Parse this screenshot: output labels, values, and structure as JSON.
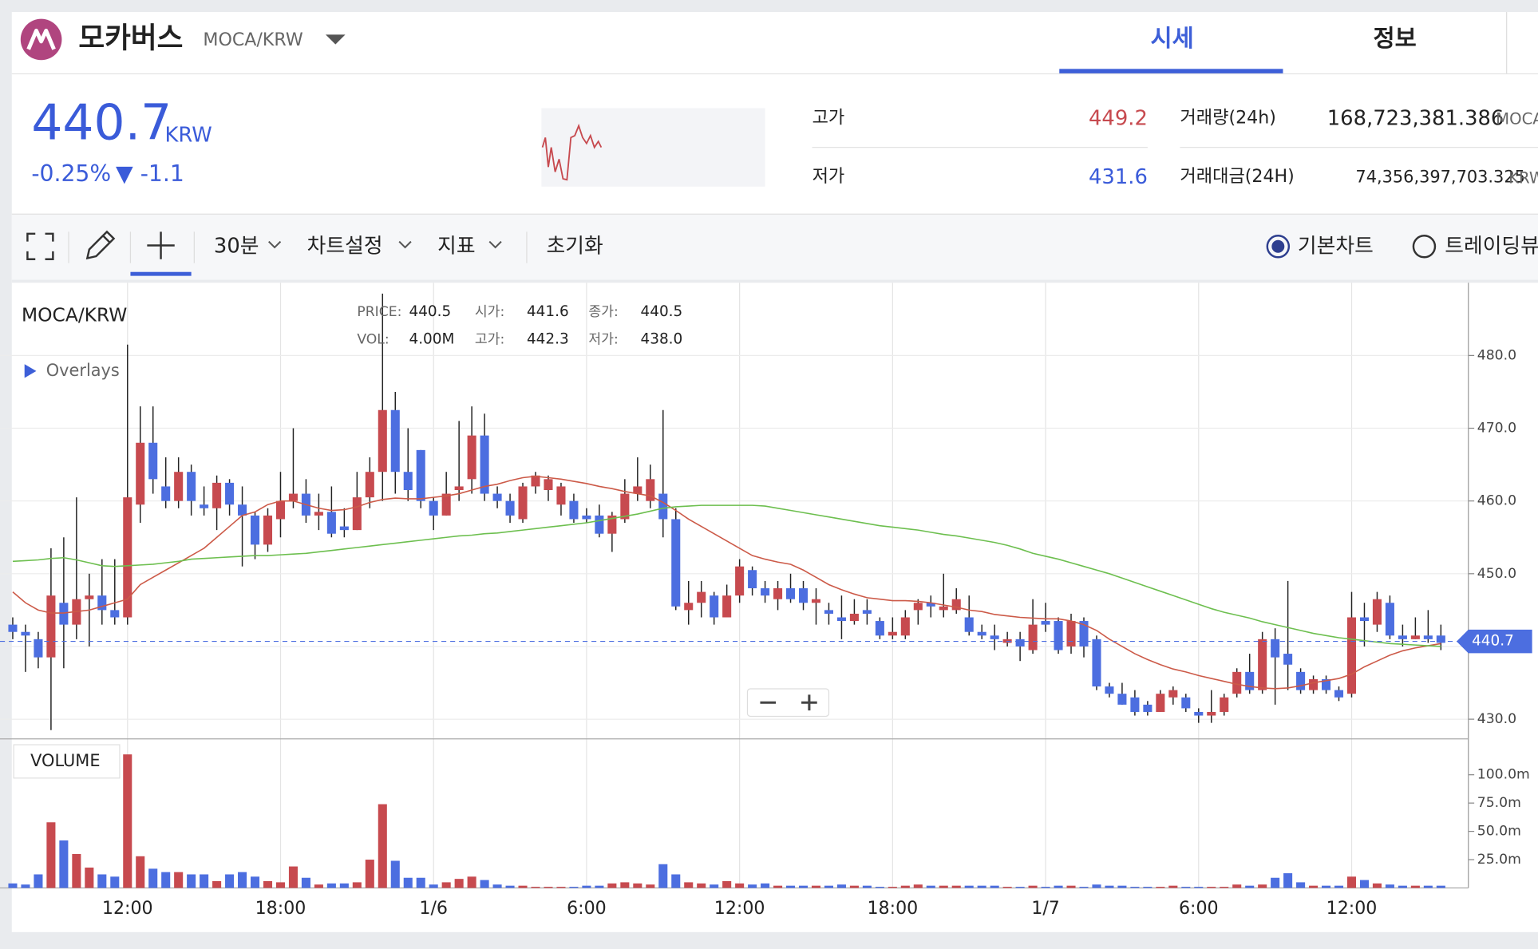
{
  "header": {
    "name": "모카버스",
    "pair": "MOCA/KRW",
    "tabs": [
      "시세",
      "정보"
    ]
  },
  "ticker": {
    "price": 440.7,
    "unit": "KRW",
    "change_pct": "-0.25%",
    "change": "▼ -1.1"
  },
  "stats": {
    "high_label": "고가",
    "high": 449.2,
    "low_label": "저가",
    "low": 431.6,
    "volume_label": "거래량(24h)",
    "volume": "168,723,381.386",
    "volume_unit": "MOCA",
    "amount_label": "거래대금(24H)",
    "amount": "74,356,397,703.325",
    "amount_unit": "KRW"
  },
  "toolbar": {
    "interval": "30분",
    "settings": "차트설정",
    "indicators": "지표",
    "reset": "초기화",
    "modes": [
      "기본차트",
      "트레이딩뷰"
    ]
  },
  "chart_data": {
    "type": "candlestick",
    "title": "MOCA/KRW",
    "overlays": "Overlays",
    "info": [
      [
        {
          "label": "PRICE:",
          "value": 440.5
        },
        {
          "label": "시가:",
          "value": 441.6
        },
        {
          "label": "종가:",
          "value": 440.5
        }
      ],
      [
        {
          "label": "VOL:",
          "value": "4.00M"
        },
        {
          "label": "고가:",
          "value": 442.3
        },
        {
          "label": "저가:",
          "value": "438.0"
        }
      ]
    ],
    "up_color": "#c74a4f",
    "down_color": "#4c6ee0",
    "ylim": [
      427.3,
      490
    ],
    "yticks": [
      {
        "value": 430,
        "label": "430.0"
      },
      {
        "value": 440,
        "label": "440.0"
      },
      {
        "value": 450,
        "label": "450.0"
      },
      {
        "value": 460,
        "label": "460.0"
      },
      {
        "value": 470,
        "label": "470.0"
      },
      {
        "value": 480,
        "label": "480.0"
      }
    ],
    "last_price": 440.7,
    "categories": [
      null,
      null,
      null,
      null,
      null,
      null,
      null,
      null,
      null,
      "12:00",
      null,
      null,
      null,
      null,
      null,
      null,
      null,
      null,
      null,
      null,
      null,
      "18:00",
      null,
      null,
      null,
      null,
      null,
      null,
      null,
      null,
      null,
      null,
      null,
      "1/6",
      null,
      null,
      null,
      null,
      null,
      null,
      null,
      null,
      null,
      null,
      null,
      "6:00",
      null,
      null,
      null,
      null,
      null,
      null,
      null,
      null,
      null,
      null,
      null,
      "12:00",
      null,
      null,
      null,
      null,
      null,
      null,
      null,
      null,
      null,
      null,
      null,
      "18:00",
      null,
      null,
      null,
      null,
      null,
      null,
      null,
      null,
      null,
      null,
      null,
      "1/7",
      null,
      null,
      null,
      null,
      null,
      null,
      null,
      null,
      null,
      null,
      null,
      "6:00",
      null,
      null,
      null,
      null,
      null,
      null,
      null,
      null,
      null,
      null,
      null,
      "12:00",
      null,
      null,
      null,
      null,
      null,
      null,
      null
    ],
    "candles": [
      [
        443,
        444,
        441,
        442
      ],
      [
        442,
        443,
        436.5,
        441.5
      ],
      [
        441,
        442,
        437,
        438.5
      ],
      [
        438.5,
        453.5,
        428.5,
        447
      ],
      [
        446,
        455,
        437,
        443
      ],
      [
        443,
        460.5,
        441,
        446.5
      ],
      [
        446.5,
        450,
        440,
        447
      ],
      [
        447,
        452,
        443,
        445
      ],
      [
        445,
        452,
        443,
        444
      ],
      [
        444,
        481.5,
        443,
        460.5
      ],
      [
        459.5,
        473,
        457,
        468
      ],
      [
        468,
        473,
        461,
        463
      ],
      [
        462,
        466,
        459,
        460
      ],
      [
        460,
        466,
        459,
        464
      ],
      [
        464,
        465,
        458,
        460
      ],
      [
        459.5,
        462,
        458,
        459
      ],
      [
        459,
        463.5,
        456,
        462.5
      ],
      [
        462.5,
        463,
        458,
        459.5
      ],
      [
        459.5,
        462,
        451,
        458
      ],
      [
        458,
        458.5,
        452,
        454
      ],
      [
        454,
        459,
        453,
        458
      ],
      [
        457.5,
        464,
        455,
        460
      ],
      [
        460,
        470,
        459,
        461
      ],
      [
        461,
        463,
        457,
        458
      ],
      [
        458,
        461,
        456,
        458.5
      ],
      [
        458.5,
        462,
        455,
        455.5
      ],
      [
        456.5,
        459,
        455,
        456
      ],
      [
        456,
        464,
        456,
        460.5
      ],
      [
        460.5,
        466,
        459,
        464
      ],
      [
        464,
        488.5,
        460,
        472.5
      ],
      [
        472.5,
        475,
        461,
        464
      ],
      [
        464,
        470,
        460,
        461.5
      ],
      [
        467,
        467,
        459,
        460
      ],
      [
        460,
        460.5,
        456,
        458
      ],
      [
        458,
        464,
        458,
        461
      ],
      [
        461.5,
        471,
        460,
        462
      ],
      [
        463,
        473,
        461,
        469
      ],
      [
        469,
        472,
        460,
        461
      ],
      [
        461,
        462,
        459,
        460
      ],
      [
        460,
        461,
        457,
        458
      ],
      [
        457.5,
        462.5,
        457,
        462
      ],
      [
        462,
        464,
        461,
        463.5
      ],
      [
        461.5,
        463.5,
        460,
        463
      ],
      [
        459.5,
        462.5,
        458,
        462
      ],
      [
        460,
        461,
        457,
        457.5
      ],
      [
        458,
        459,
        457,
        457.5
      ],
      [
        458,
        459.5,
        455,
        455.5
      ],
      [
        455.5,
        458.5,
        453,
        458
      ],
      [
        457.5,
        463,
        457,
        461
      ],
      [
        461,
        466,
        460,
        462
      ],
      [
        460,
        465,
        459,
        463
      ],
      [
        461,
        472.5,
        455,
        457.5
      ],
      [
        457.5,
        459,
        445,
        445.5
      ],
      [
        445,
        449,
        443,
        446
      ],
      [
        446,
        449,
        444,
        447.5
      ],
      [
        447,
        447.5,
        443,
        444
      ],
      [
        444,
        448.5,
        444,
        447
      ],
      [
        447,
        452,
        446,
        451
      ],
      [
        450.5,
        451,
        447,
        448
      ],
      [
        448,
        449,
        446,
        447
      ],
      [
        446.5,
        449,
        445,
        448
      ],
      [
        448,
        450,
        446,
        446.5
      ],
      [
        448,
        449,
        445,
        446
      ],
      [
        446,
        448,
        443,
        446.5
      ],
      [
        445,
        446,
        443,
        444.5
      ],
      [
        444,
        447,
        441,
        443.5
      ],
      [
        443.5,
        446.5,
        443,
        444.5
      ],
      [
        445,
        446.5,
        443,
        444.5
      ],
      [
        443.5,
        444,
        441,
        441.5
      ],
      [
        441.5,
        444,
        441,
        442
      ],
      [
        441.5,
        445,
        441,
        444
      ],
      [
        445,
        446.5,
        443,
        446
      ],
      [
        446,
        447,
        444,
        445.5
      ],
      [
        445,
        450,
        444,
        445.5
      ],
      [
        445,
        448,
        444.5,
        446.5
      ],
      [
        444,
        447,
        441.5,
        442
      ],
      [
        442,
        443,
        441,
        441.5
      ],
      [
        441.5,
        443,
        439.5,
        441
      ],
      [
        440.5,
        442,
        440,
        441
      ],
      [
        441,
        442,
        438,
        440
      ],
      [
        439.5,
        446.5,
        439,
        443
      ],
      [
        443.5,
        446,
        442,
        443
      ],
      [
        443.5,
        444,
        439,
        439.5
      ],
      [
        440,
        444.5,
        439,
        443.5
      ],
      [
        443.5,
        444,
        438.5,
        440
      ],
      [
        441,
        441.5,
        434,
        434.5
      ],
      [
        434.5,
        435,
        433,
        433.5
      ],
      [
        433.5,
        435,
        432,
        432
      ],
      [
        433,
        434,
        430.5,
        431
      ],
      [
        432,
        432.5,
        430.5,
        431
      ],
      [
        431,
        434,
        431,
        433.5
      ],
      [
        433,
        434.5,
        432,
        434
      ],
      [
        433,
        433.5,
        431,
        431.5
      ],
      [
        431,
        431.5,
        429.5,
        430.5
      ],
      [
        430.5,
        434,
        429.5,
        431
      ],
      [
        431,
        433.5,
        430.5,
        433
      ],
      [
        433.5,
        437,
        433,
        436.5
      ],
      [
        436.5,
        439,
        433.5,
        434
      ],
      [
        434,
        442,
        433.5,
        441
      ],
      [
        441,
        442.5,
        432,
        438.5
      ],
      [
        439,
        449,
        434,
        437.5
      ],
      [
        436.5,
        437,
        433.5,
        434
      ],
      [
        434,
        436,
        433.5,
        435.5
      ],
      [
        435.5,
        436,
        433.5,
        434
      ],
      [
        434,
        434.5,
        432.5,
        433
      ],
      [
        433.5,
        447.5,
        433,
        444
      ],
      [
        444,
        446,
        440,
        443.5
      ],
      [
        443,
        447.5,
        442,
        446.5
      ],
      [
        446,
        447,
        441,
        441.5
      ],
      [
        441.5,
        443,
        440,
        441
      ],
      [
        441,
        444,
        441,
        441.5
      ],
      [
        441.5,
        445,
        440.5,
        441
      ],
      [
        441.5,
        443,
        439.5,
        440.5
      ]
    ],
    "moving_averages": [
      {
        "color": "#cc5a48",
        "values": [
          447.5,
          446,
          445,
          444.6,
          444.6,
          444.8,
          445,
          445.5,
          446,
          446.5,
          448.5,
          449.5,
          450.5,
          451.5,
          452.5,
          453.5,
          455,
          456.5,
          458,
          458.5,
          459.5,
          460,
          460,
          459.5,
          459,
          458.7,
          458.8,
          459.2,
          459.8,
          460.2,
          460.4,
          460.3,
          460.3,
          460.5,
          460.7,
          461,
          461.5,
          462,
          462.3,
          462.8,
          463.2,
          463.4,
          463.2,
          463,
          462.7,
          462.4,
          462,
          461.7,
          461.3,
          461,
          460.7,
          459.8,
          458.7,
          457.5,
          456.5,
          455.5,
          454.5,
          453.5,
          452.5,
          452,
          451.6,
          451.3,
          450.5,
          449.5,
          448.5,
          447.8,
          447.2,
          446.7,
          446.5,
          446.3,
          446.3,
          446.2,
          446,
          445.7,
          445.4,
          445,
          444.8,
          444.4,
          444.2,
          444,
          443.9,
          443.8,
          443.8,
          443.5,
          443,
          442.2,
          441,
          440,
          439,
          438.2,
          437.5,
          436.9,
          436.5,
          436,
          435.6,
          435.2,
          434.8,
          434.5,
          434.3,
          434.2,
          434.3,
          434.6,
          435,
          435.3,
          435.6,
          436.2,
          437.2,
          438,
          438.8,
          439.4,
          439.8,
          440.1,
          440.4
        ]
      },
      {
        "color": "#6dbf4f",
        "values": [
          451.7,
          451.8,
          451.9,
          452.1,
          452.2,
          451.9,
          451.5,
          451.1,
          451,
          451.1,
          451.2,
          451.3,
          451.5,
          451.7,
          452,
          452.1,
          452.2,
          452.3,
          452.4,
          452.5,
          452.5,
          452.6,
          452.7,
          452.8,
          453,
          453.2,
          453.4,
          453.6,
          453.8,
          454,
          454.2,
          454.4,
          454.6,
          454.8,
          455,
          455.2,
          455.3,
          455.5,
          455.6,
          455.8,
          456,
          456.2,
          456.4,
          456.6,
          456.8,
          457,
          457.3,
          457.6,
          457.9,
          458.2,
          458.6,
          459,
          459.2,
          459.3,
          459.4,
          459.4,
          459.4,
          459.4,
          459.4,
          459.3,
          459,
          458.7,
          458.4,
          458.1,
          457.8,
          457.5,
          457.2,
          456.9,
          456.6,
          456.4,
          456.2,
          456,
          455.7,
          455.4,
          455.2,
          454.9,
          454.6,
          454.3,
          453.9,
          453.4,
          452.8,
          452.4,
          452,
          451.5,
          451,
          450.5,
          450,
          449.4,
          448.8,
          448.2,
          447.6,
          447,
          446.4,
          445.8,
          445.2,
          444.7,
          444.3,
          443.9,
          443.4,
          443,
          442.6,
          442.2,
          441.8,
          441.5,
          441.2,
          441,
          440.8,
          440.6,
          440.4,
          440.3,
          440.2,
          440.1,
          440
        ]
      }
    ],
    "volume": {
      "label": "VOLUME",
      "ylim": [
        0,
        130
      ],
      "yticks": [
        {
          "value": 25,
          "label": "25.0m"
        },
        {
          "value": 50,
          "label": "50.0m"
        },
        {
          "value": 75,
          "label": "75.0m"
        },
        {
          "value": 100,
          "label": "100.0m"
        }
      ],
      "values": [
        4,
        3,
        12,
        58,
        42,
        30,
        18,
        12,
        10,
        118,
        28,
        17,
        14,
        14,
        12,
        12,
        6,
        12,
        14,
        10,
        6,
        5,
        19,
        9,
        3,
        4,
        4,
        5,
        25,
        74,
        24,
        9,
        9,
        3,
        5,
        8,
        10,
        7,
        3,
        2,
        2,
        1,
        1,
        1,
        1,
        2,
        2,
        4,
        5,
        4,
        3,
        21,
        12,
        5,
        4,
        3,
        6,
        4,
        3,
        4,
        2,
        2,
        2,
        2,
        2,
        3,
        2,
        2,
        1,
        1,
        2,
        3,
        2,
        2,
        2,
        2,
        2,
        2,
        1,
        1,
        2,
        1,
        2,
        2,
        1,
        3,
        2,
        2,
        1,
        1,
        1,
        2,
        1,
        1,
        1,
        1,
        3,
        2,
        3,
        9,
        13,
        5,
        2,
        2,
        2,
        10,
        7,
        4,
        3,
        2,
        2,
        2,
        2
      ]
    }
  }
}
